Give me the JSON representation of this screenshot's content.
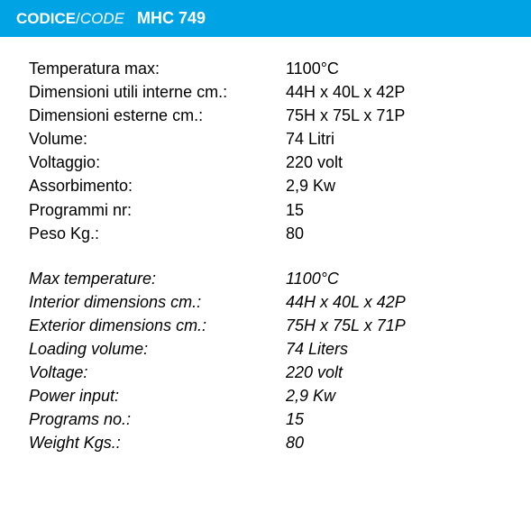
{
  "header": {
    "label_it": "CODICE",
    "slash": "/",
    "label_en": "CODE",
    "code": "MHC 749",
    "bg_color": "#00a4e4",
    "text_color": "#ffffff"
  },
  "specs_it": [
    {
      "label": "Temperatura max:",
      "value": "1100°C"
    },
    {
      "label": "Dimensioni utili interne cm.:",
      "value": "44H x 40L x 42P"
    },
    {
      "label": "Dimensioni esterne cm.:",
      "value": "75H x 75L x 71P"
    },
    {
      "label": "Volume:",
      "value": "74 Litri"
    },
    {
      "label": "Voltaggio:",
      "value": "220 volt"
    },
    {
      "label": "Assorbimento:",
      "value": "2,9 Kw"
    },
    {
      "label": "Programmi nr:",
      "value": "15"
    },
    {
      "label": "Peso Kg.:",
      "value": "80"
    }
  ],
  "specs_en": [
    {
      "label": "Max temperature:",
      "value": "1100°C"
    },
    {
      "label": "Interior dimensions cm.:",
      "value": "44H x 40L x 42P"
    },
    {
      "label": "Exterior dimensions cm.:",
      "value": "75H x 75L x 71P"
    },
    {
      "label": "Loading volume:",
      "value": "74 Liters"
    },
    {
      "label": "Voltage:",
      "value": "220 volt"
    },
    {
      "label": "Power input:",
      "value": "2,9 Kw"
    },
    {
      "label": "Programs no.:",
      "value": "15"
    },
    {
      "label": "Weight Kgs.:",
      "value": "80"
    }
  ],
  "styling": {
    "body_bg": "#ffffff",
    "text_color": "#000000",
    "font_family": "Arial, Helvetica, sans-serif",
    "spec_fontsize": 18,
    "header_fontsize": 17,
    "label_col_width": 285
  }
}
